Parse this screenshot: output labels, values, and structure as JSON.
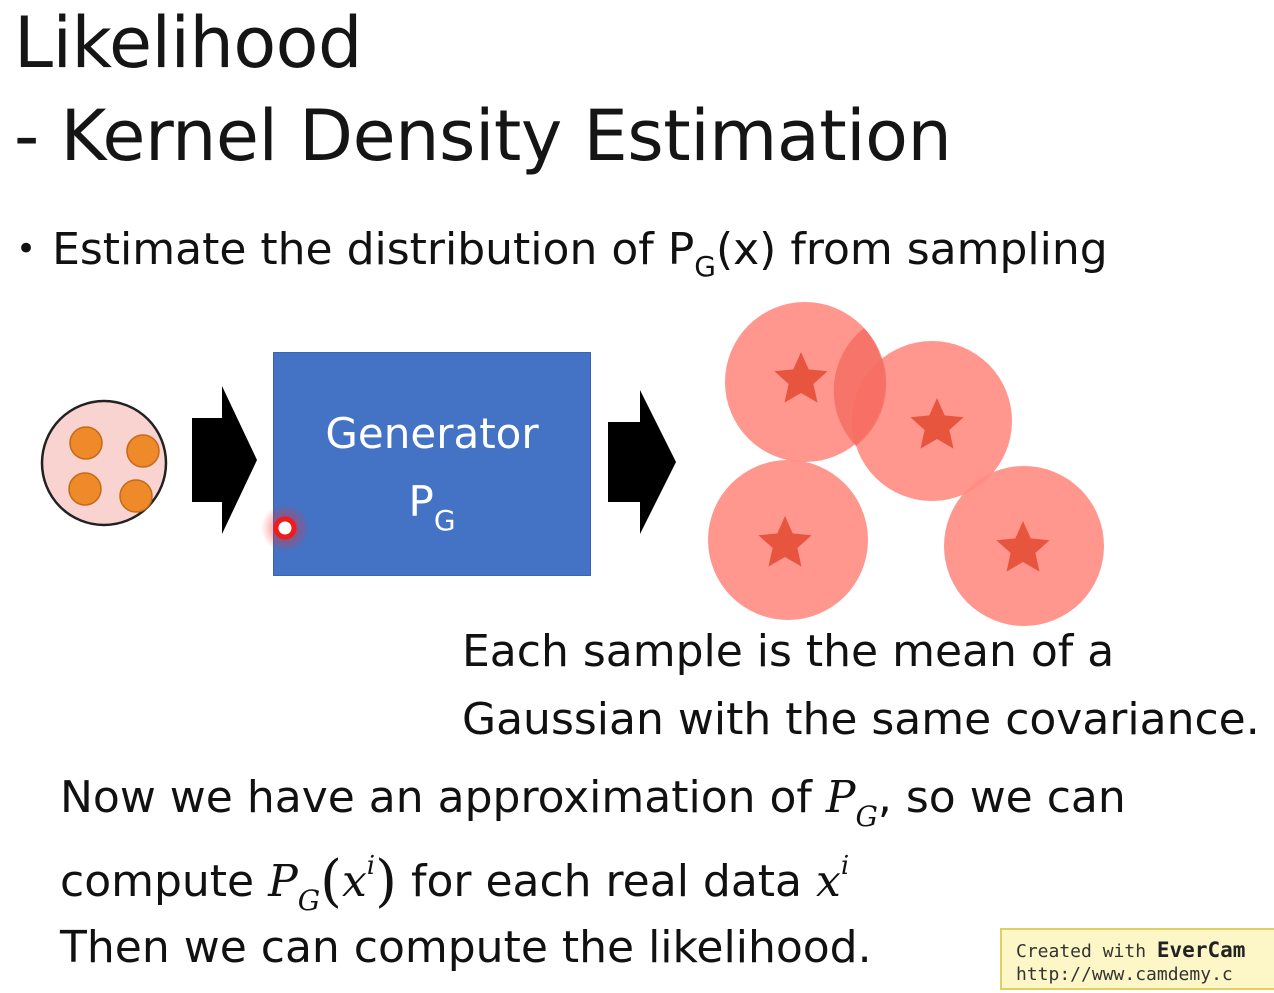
{
  "slide": {
    "title_line1": "Likelihood",
    "title_line2": "- Kernel Density Estimation",
    "bullet": {
      "pre": "Estimate the distribution of P",
      "sub": "G",
      "post": "(x) from sampling"
    },
    "generator": {
      "label": "Generator",
      "symbol": "P",
      "symbol_sub": "G"
    },
    "caption_line1": "Each sample is the mean of a",
    "caption_line2": "Gaussian with the same covariance.",
    "line1": {
      "pre": "Now we have an approximation of ",
      "math": "P",
      "math_sub": "G",
      "post": ", so we can"
    },
    "line2": {
      "pre": "compute ",
      "math": "P",
      "math_sub": "G",
      "arg": "x",
      "arg_sup": "i",
      "mid": " for each real data ",
      "var": "x",
      "var_sup": "i"
    },
    "line3": "Then we can compute the likelihood."
  },
  "watermark": {
    "created_with": "Created with ",
    "brand": "EverCam",
    "url": "http://www.camdemy.c"
  },
  "colors": {
    "generator_fill": "#4472c4",
    "gaussian_fill": "#ff8c82",
    "star_fill": "#e8553f",
    "input_circle_fill": "#f8d3d0",
    "input_dot_fill": "#ef8a2a",
    "arrow_fill": "#000000",
    "pointer_red": "#ee1c1c"
  },
  "icons": [
    "noise-input-icon",
    "arrow-right-icon",
    "star-icon",
    "laser-pointer-icon"
  ]
}
